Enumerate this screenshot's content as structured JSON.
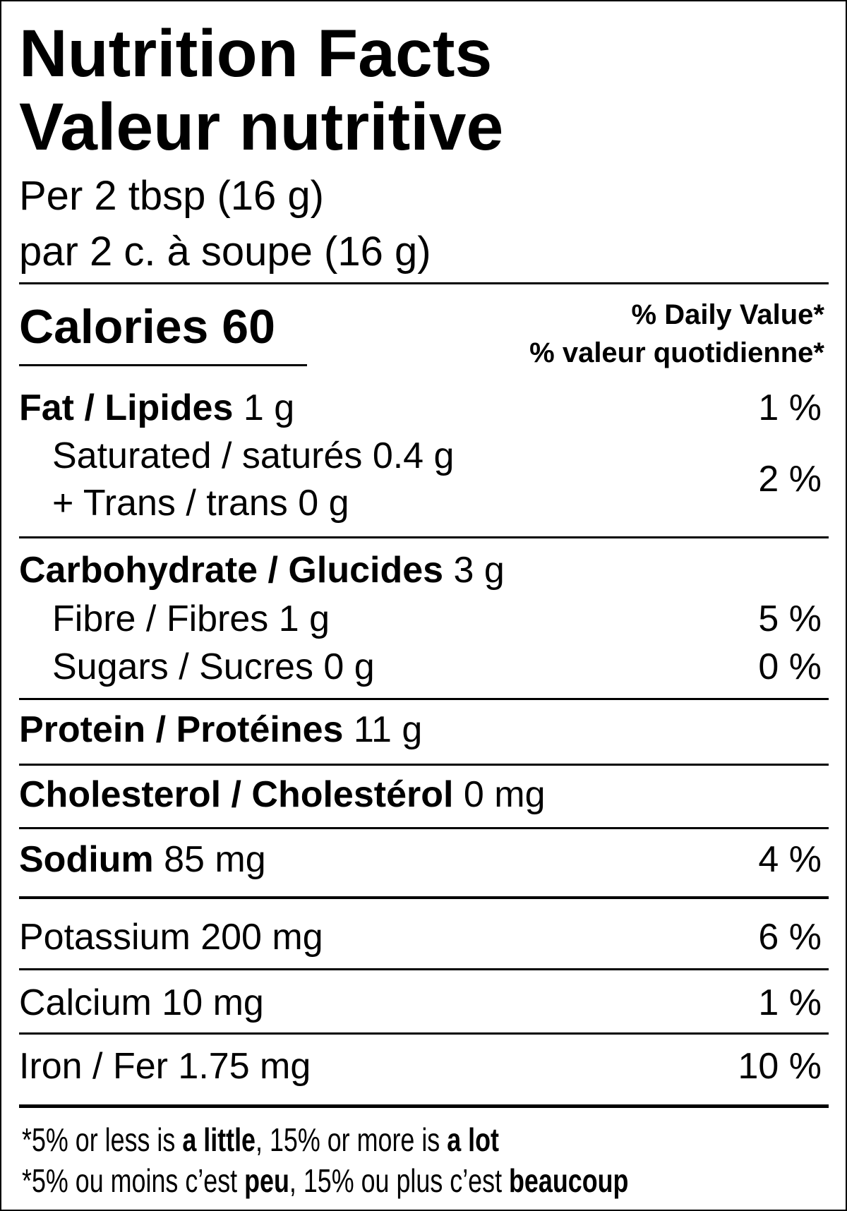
{
  "header": {
    "title_en": "Nutrition Facts",
    "title_fr": "Valeur nutritive",
    "serving_en": "Per 2 tbsp (16 g)",
    "serving_fr": "par 2 c. à soupe (16 g)"
  },
  "calories": {
    "label": "Calories",
    "value": "60"
  },
  "dv_header": {
    "en": "% Daily Value*",
    "fr": "% valeur quotidienne*"
  },
  "nutrients": {
    "fat": {
      "label": "Fat / Lipides",
      "amount": "1 g",
      "dv": "1 %"
    },
    "saturated": {
      "label": "Saturated / saturés",
      "amount": "0.4 g"
    },
    "trans": {
      "label": "+ Trans / trans",
      "amount": "0 g"
    },
    "sat_trans_dv": "2 %",
    "carbohydrate": {
      "label": "Carbohydrate / Glucides",
      "amount": "3 g"
    },
    "fibre": {
      "label": "Fibre / Fibres",
      "amount": "1 g",
      "dv": "5 %"
    },
    "sugars": {
      "label": "Sugars / Sucres",
      "amount": "0 g",
      "dv": "0 %"
    },
    "protein": {
      "label": "Protein / Protéines",
      "amount": "11 g"
    },
    "cholesterol": {
      "label": "Cholesterol / Cholestérol",
      "amount": "0 mg"
    },
    "sodium": {
      "label": "Sodium",
      "amount": "85 mg",
      "dv": "4 %"
    },
    "potassium": {
      "label": "Potassium",
      "amount": "200 mg",
      "dv": "6 %"
    },
    "calcium": {
      "label": "Calcium",
      "amount": "10 mg",
      "dv": "1 %"
    },
    "iron": {
      "label": "Iron / Fer",
      "amount": "1.75 mg",
      "dv": "10 %"
    }
  },
  "footnote": {
    "en": {
      "p1": "*5% or less is ",
      "b1": "a little",
      "p2": ", 15% or more is ",
      "b2": "a lot"
    },
    "fr": {
      "p1": "*5% ou moins c’est ",
      "b1": "peu",
      "p2": ", 15% ou plus c’est ",
      "b2": "beaucoup"
    }
  }
}
